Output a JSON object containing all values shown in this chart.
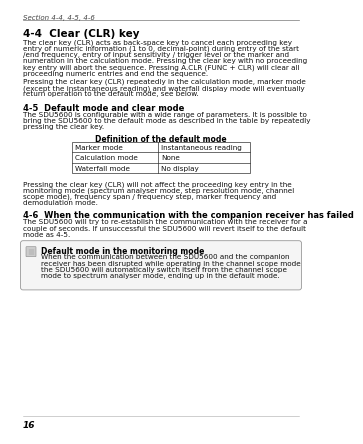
{
  "bg_color": "#ffffff",
  "page_number": "16",
  "section_header": "Section 4-4, 4-5, 4-6",
  "title_44": "4-4  Clear (CLR) key",
  "para1_segments": [
    [
      "The clear key (",
      "normal"
    ],
    [
      "CLR",
      "bold"
    ],
    [
      ") acts as ",
      "normal"
    ],
    [
      "back-space key",
      "bold"
    ],
    [
      " to cancel each proceeding key entry of numeric information (",
      "normal"
    ],
    [
      "1",
      "bold"
    ],
    [
      " to ",
      "normal"
    ],
    [
      "0",
      "bold"
    ],
    [
      ", ",
      "normal"
    ],
    [
      "decimal-point",
      "bold"
    ],
    [
      ") during entry of the start /end frequency, entry of input sensitivity / trigger level or the marker and numeration in the calculation mode. Pressing the clear key with no proceeding key entry will abort the sequence. Pressing ",
      "normal"
    ],
    [
      "A.CLR",
      "bold"
    ],
    [
      " (",
      "normal"
    ],
    [
      "FUNC",
      "bold"
    ],
    [
      " + ",
      "normal"
    ],
    [
      "CLR",
      "bold"
    ],
    [
      ") will clear all proceeding numeric entries and end the sequence.",
      "normal"
    ]
  ],
  "para1_lines": [
    "The clear key (CLR) acts as back-space key to cancel each proceeding key",
    "entry of numeric information (1 to 0, decimal-point) during entry of the start",
    "/end frequency, entry of input sensitivity / trigger level or the marker and",
    "numeration in the calculation mode. Pressing the clear key with no proceeding",
    "key entry will abort the sequence. Pressing A.CLR (FUNC + CLR) will clear all",
    "proceeding numeric entries and end the sequence."
  ],
  "para2_lines": [
    "Pressing the clear key (CLR) repeatedly in the calculation mode, marker mode",
    "(except the instantaneous reading) and waterfall display mode will eventually",
    "return operation to the default mode, see below."
  ],
  "title_45": "4-5  Default mode and clear mode",
  "para3_lines": [
    "The SDU5600 is configurable with a wide range of parameters. It is possible to",
    "bring the SDU5600 to the default mode as described in the table by repeatedly",
    "pressing the clear key."
  ],
  "table_title": "Definition of the default mode",
  "table_rows": [
    [
      "Marker mode",
      "Instantaneous reading"
    ],
    [
      "Calculation mode",
      "None"
    ],
    [
      "Waterfall mode",
      "No display"
    ]
  ],
  "para4_lines": [
    "Pressing the clear key (CLR) will not affect the proceeding key entry in the",
    "monitoring mode (spectrum analyser mode, step resolution mode, channel",
    "scope mode), frequency span / frequency step, marker frequency and",
    "demodulation mode."
  ],
  "title_46": "4-6  When the communication with the companion receiver has failed",
  "para5_lines": [
    "The SDU5600 will try to re-establish the communication with the receiver for a",
    "couple of seconds. If unsuccessful the SDU5600 will revert itself to the default",
    "mode as 4-5."
  ],
  "note_title": "Default mode in the monitoring mode",
  "note_lines": [
    "When the communication between the SDU5600 and the companion",
    "receiver has been disrupted while operating in the channel scope mode",
    "the SDU5600 will automatically switch itself from the channel scope",
    "mode to spectrum analyser mode, ending up in the default mode."
  ]
}
